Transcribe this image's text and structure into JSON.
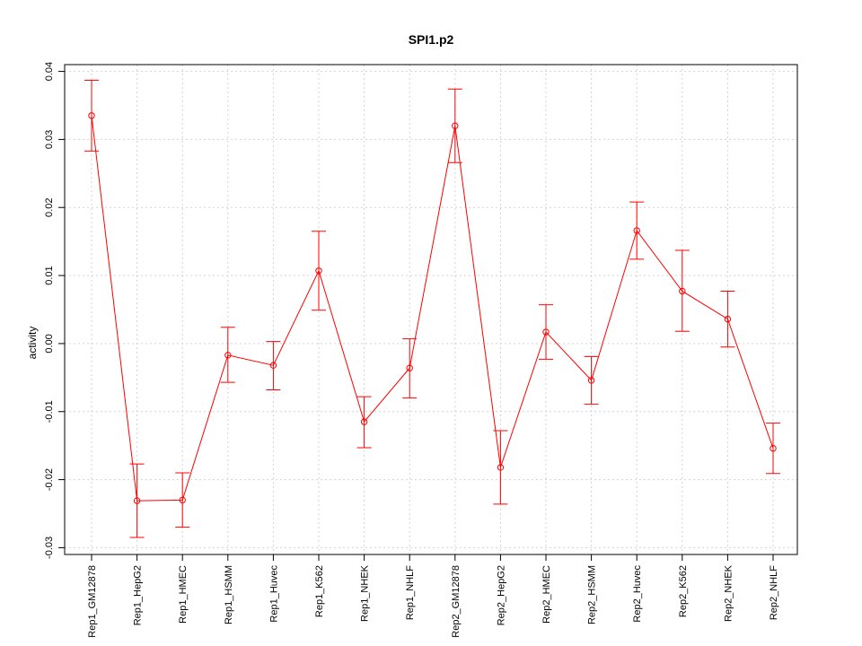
{
  "chart_data": {
    "type": "line",
    "title": "SPI1.p2",
    "xlabel": "",
    "ylabel": "activity",
    "ylim": [
      -0.031,
      0.041
    ],
    "yticks": [
      -0.03,
      -0.02,
      -0.01,
      0.0,
      0.01,
      0.02,
      0.03,
      0.04
    ],
    "ytick_labels": [
      "-0.03",
      "-0.02",
      "-0.01",
      "0.00",
      "0.01",
      "0.02",
      "0.03",
      "0.04"
    ],
    "grid": true,
    "series_color": "#ff0000",
    "categories": [
      "Rep1_GM12878",
      "Rep1_HepG2",
      "Rep1_HMEC",
      "Rep1_HSMM",
      "Rep1_Huvec",
      "Rep1_K562",
      "Rep1_NHEK",
      "Rep1_NHLF",
      "Rep2_GM12878",
      "Rep2_HepG2",
      "Rep2_HMEC",
      "Rep2_HSMM",
      "Rep2_Huvec",
      "Rep2_K562",
      "Rep2_NHEK",
      "Rep2_NHLF"
    ],
    "values": [
      0.0335,
      -0.0231,
      -0.023,
      -0.0017,
      -0.0032,
      0.0107,
      -0.0115,
      -0.0036,
      0.032,
      -0.0182,
      0.0017,
      -0.0054,
      0.0166,
      0.0077,
      0.0036,
      -0.0154
    ],
    "error_upper": [
      0.0387,
      -0.0177,
      -0.019,
      0.0024,
      0.0003,
      0.0165,
      -0.0078,
      0.0007,
      0.0374,
      -0.0128,
      0.0057,
      -0.0019,
      0.0208,
      0.0137,
      0.0077,
      -0.0117
    ],
    "error_lower": [
      0.0283,
      -0.0285,
      -0.027,
      -0.0057,
      -0.0068,
      0.0049,
      -0.0153,
      -0.008,
      0.0266,
      -0.0236,
      -0.0023,
      -0.0089,
      0.0124,
      0.0018,
      -0.0005,
      -0.0191
    ]
  }
}
